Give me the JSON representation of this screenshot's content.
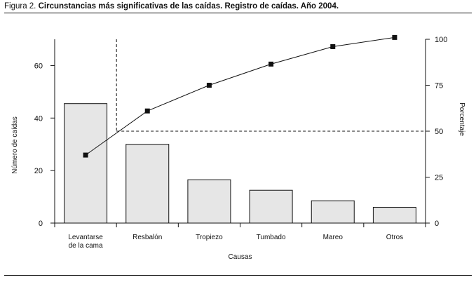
{
  "figure": {
    "label": "Figura 2.",
    "title": "Circunstancias más significativas de las caídas. Registro de caídas. Año 2004."
  },
  "chart_data": {
    "type": "bar",
    "title": "Circunstancias más significativas de las caídas. Registro de caídas. Año 2004.",
    "xlabel": "Causas",
    "ylabel": "Número de caídas",
    "y2label": "Porcentaje",
    "categories": [
      [
        "Levantarse",
        "de la cama"
      ],
      [
        "Resbalón"
      ],
      [
        "Tropiezo"
      ],
      [
        "Tumbado"
      ],
      [
        "Mareo"
      ],
      [
        "Otros"
      ]
    ],
    "ylim": [
      0,
      70
    ],
    "y2lim": [
      0,
      100
    ],
    "yticks": [
      0,
      20,
      40,
      60
    ],
    "y2ticks": [
      0,
      25,
      50,
      75,
      100
    ],
    "series": [
      {
        "type": "bar",
        "axis": "left",
        "values": [
          45.5,
          30,
          16.5,
          12.5,
          8.5,
          6
        ]
      },
      {
        "type": "line",
        "axis": "right",
        "marker": "square",
        "values": [
          37,
          61,
          75,
          86.5,
          96,
          101
        ]
      }
    ],
    "reference": {
      "y2": 50,
      "x_category": 0.5
    },
    "grid": false,
    "legend": "none",
    "colors": {
      "bar_fill": "#e6e6e6",
      "bar_stroke": "#111111",
      "line": "#111111"
    }
  }
}
